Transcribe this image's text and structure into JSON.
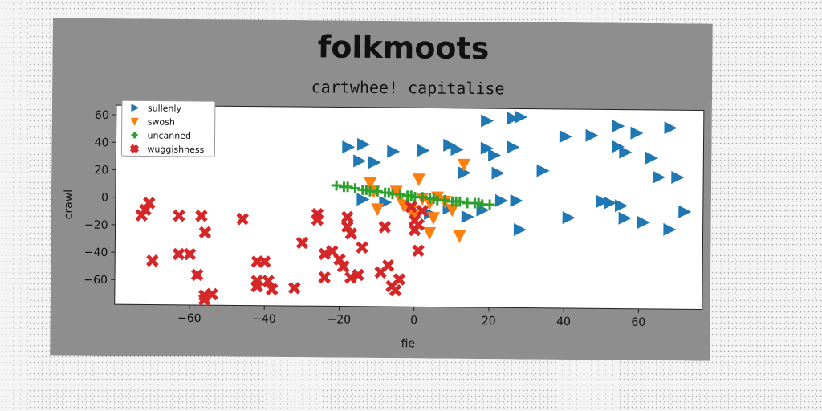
{
  "chart_data": {
    "type": "scatter",
    "title": "folkmoots",
    "subtitle": "cartwhee! capitalise",
    "xlabel": "fie",
    "ylabel": "crawl",
    "xlim": [
      -80,
      77
    ],
    "ylim": [
      -78,
      67
    ],
    "xticks": [
      -60,
      -40,
      -20,
      0,
      20,
      40,
      60
    ],
    "yticks": [
      -60,
      -40,
      -20,
      0,
      20,
      40,
      60
    ],
    "grid": false,
    "legend_position": "top-left",
    "series": [
      {
        "name": "sullenly",
        "marker": "triangle-right",
        "color": "#1f77b4",
        "points": [
          [
            -18,
            38
          ],
          [
            -14,
            40
          ],
          [
            -15,
            28
          ],
          [
            -11,
            27
          ],
          [
            -6,
            35
          ],
          [
            2,
            36
          ],
          [
            9,
            40
          ],
          [
            11,
            37
          ],
          [
            13,
            20
          ],
          [
            19,
            38
          ],
          [
            21,
            33
          ],
          [
            26,
            39
          ],
          [
            19,
            58
          ],
          [
            28,
            61
          ],
          [
            26,
            60
          ],
          [
            22,
            20
          ],
          [
            34,
            22
          ],
          [
            40,
            47
          ],
          [
            47,
            48
          ],
          [
            54,
            55
          ],
          [
            59,
            50
          ],
          [
            56,
            36
          ],
          [
            63,
            32
          ],
          [
            54,
            40
          ],
          [
            68,
            54
          ],
          [
            65,
            18
          ],
          [
            70,
            18
          ],
          [
            -14,
            0
          ],
          [
            -8,
            -2
          ],
          [
            4,
            -10
          ],
          [
            9,
            -6
          ],
          [
            14,
            -12
          ],
          [
            18,
            -7
          ],
          [
            23,
            0
          ],
          [
            27,
            0
          ],
          [
            28,
            -21
          ],
          [
            41,
            -12
          ],
          [
            50,
            0
          ],
          [
            52,
            -1
          ],
          [
            55,
            -3
          ],
          [
            56,
            -12
          ],
          [
            61,
            -15
          ],
          [
            68,
            -20
          ],
          [
            72,
            -7
          ]
        ]
      },
      {
        "name": "swosh",
        "marker": "triangle-down",
        "color": "#ff7f0e",
        "points": [
          [
            -12,
            12
          ],
          [
            -11,
            6
          ],
          [
            -10,
            -7
          ],
          [
            -5,
            6
          ],
          [
            -4,
            1
          ],
          [
            -3,
            -4
          ],
          [
            -1,
            -8
          ],
          [
            0,
            -12
          ],
          [
            1,
            15
          ],
          [
            2,
            1
          ],
          [
            4,
            -2
          ],
          [
            5,
            -13
          ],
          [
            4,
            -24
          ],
          [
            6,
            2
          ],
          [
            8,
            -1
          ],
          [
            10,
            -7
          ],
          [
            12,
            -26
          ],
          [
            13,
            26
          ]
        ]
      },
      {
        "name": "uncanned",
        "marker": "plus",
        "color": "#2ca02c",
        "points": [
          [
            -21,
            10
          ],
          [
            -18,
            9
          ],
          [
            -16,
            8
          ],
          [
            -14,
            7
          ],
          [
            -12,
            6
          ],
          [
            -10,
            6
          ],
          [
            -8,
            5
          ],
          [
            -6,
            4
          ],
          [
            -4,
            4
          ],
          [
            -2,
            3
          ],
          [
            0,
            2
          ],
          [
            2,
            2
          ],
          [
            4,
            1
          ],
          [
            6,
            0
          ],
          [
            8,
            0
          ],
          [
            10,
            -1
          ],
          [
            12,
            -1
          ],
          [
            14,
            -2
          ],
          [
            16,
            -2
          ],
          [
            18,
            -3
          ],
          [
            20,
            -3
          ],
          [
            -19,
            9
          ],
          [
            -13,
            7
          ],
          [
            -7,
            5
          ],
          [
            -1,
            3
          ],
          [
            5,
            1
          ],
          [
            11,
            -1
          ],
          [
            17,
            -2
          ]
        ]
      },
      {
        "name": "wuggishness",
        "marker": "x",
        "color": "#d62728",
        "points": [
          [
            -73,
            -13
          ],
          [
            -71,
            -4
          ],
          [
            -72,
            -9
          ],
          [
            -70,
            -46
          ],
          [
            -63,
            -13
          ],
          [
            -63,
            -41
          ],
          [
            -60,
            -41
          ],
          [
            -58,
            -56
          ],
          [
            -57,
            -13
          ],
          [
            -56,
            -25
          ],
          [
            -56,
            -71
          ],
          [
            -56,
            -74
          ],
          [
            -54,
            -70
          ],
          [
            -46,
            -15
          ],
          [
            -42,
            -46
          ],
          [
            -42,
            -60
          ],
          [
            -42,
            -64
          ],
          [
            -40,
            -46
          ],
          [
            -39,
            -60
          ],
          [
            -38,
            -66
          ],
          [
            -32,
            -65
          ],
          [
            -30,
            -32
          ],
          [
            -26,
            -11
          ],
          [
            -26,
            -15
          ],
          [
            -24,
            -40
          ],
          [
            -24,
            -57
          ],
          [
            -22,
            -38
          ],
          [
            -20,
            -44
          ],
          [
            -19,
            -49
          ],
          [
            -18,
            -13
          ],
          [
            -18,
            -20
          ],
          [
            -17,
            -25
          ],
          [
            -17,
            -57
          ],
          [
            -15,
            -55
          ],
          [
            -14,
            -35
          ],
          [
            -9,
            -53
          ],
          [
            -8,
            -20
          ],
          [
            -7,
            -48
          ],
          [
            -6,
            -63
          ],
          [
            -5,
            -66
          ],
          [
            -4,
            -58
          ],
          [
            -1,
            -5
          ],
          [
            0,
            -15
          ],
          [
            0,
            -22
          ],
          [
            1,
            -18
          ],
          [
            1,
            -37
          ],
          [
            2,
            -8
          ]
        ]
      }
    ]
  }
}
